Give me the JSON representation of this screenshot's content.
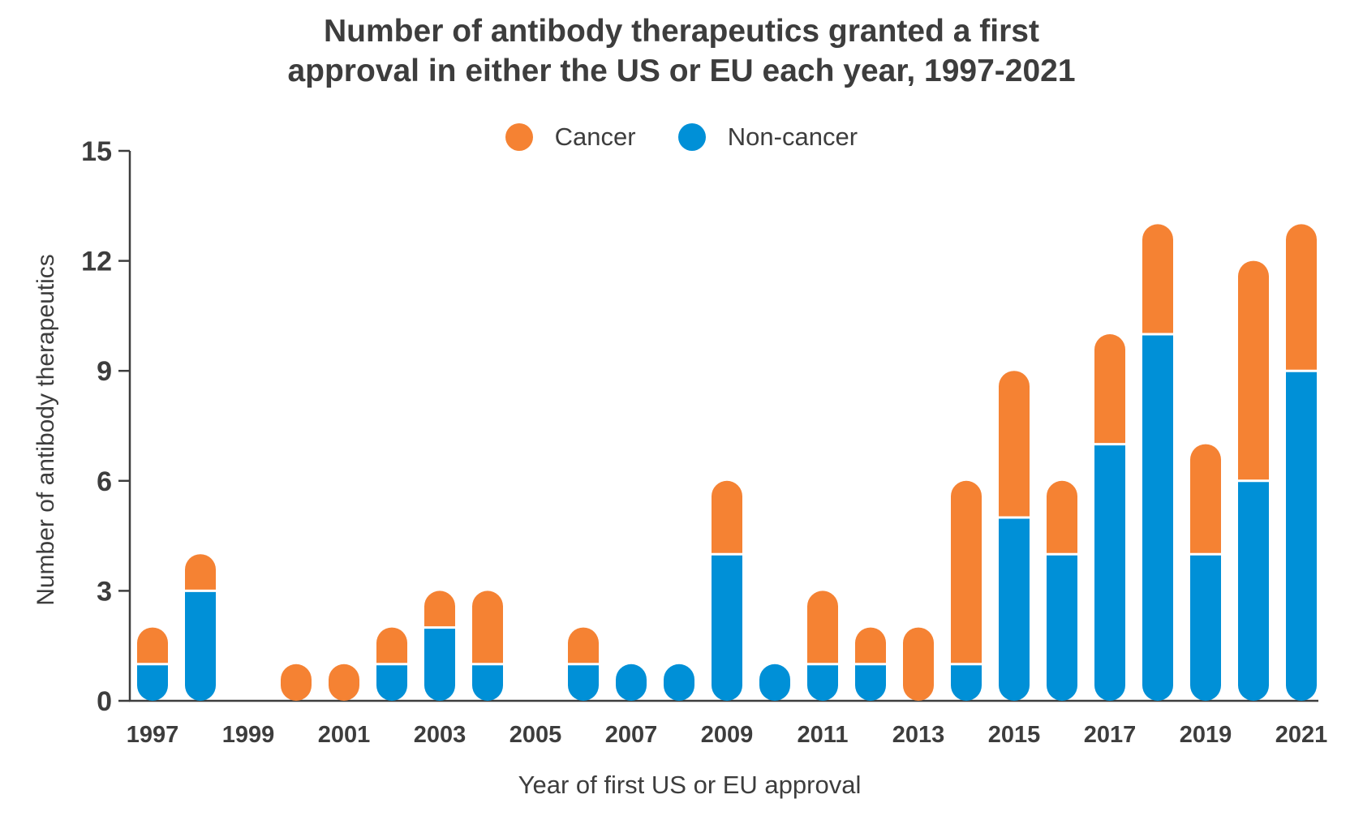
{
  "colors": {
    "cancer": "#F58233",
    "non_cancer": "#0090D7",
    "axis": "#3d3d3d"
  },
  "chart_data": {
    "type": "bar",
    "stacked": true,
    "title": "Number of antibody therapeutics granted a first approval in either the US or EU each year, 1997-2021",
    "title_lines": [
      "Number of antibody therapeutics granted a first",
      "approval in either the US or EU each year, 1997-2021"
    ],
    "xlabel": "Year of first US or EU approval",
    "ylabel": "Number of antibody therapeutics",
    "ylim": [
      0,
      15
    ],
    "yticks": [
      0,
      3,
      6,
      9,
      12,
      15
    ],
    "legend_position": "top-center",
    "categories": [
      1997,
      1998,
      1999,
      2000,
      2001,
      2002,
      2003,
      2004,
      2005,
      2006,
      2007,
      2008,
      2009,
      2010,
      2011,
      2012,
      2013,
      2014,
      2015,
      2016,
      2017,
      2018,
      2019,
      2020,
      2021
    ],
    "xtick_labels": [
      "1997",
      "1999",
      "2001",
      "2003",
      "2005",
      "2007",
      "2009",
      "2011",
      "2013",
      "2015",
      "2017",
      "2019",
      "2021"
    ],
    "series": [
      {
        "name": "Non-cancer",
        "color_key": "non_cancer",
        "values": [
          1,
          3,
          0,
          0,
          0,
          1,
          2,
          1,
          0,
          1,
          1,
          1,
          4,
          1,
          1,
          1,
          0,
          1,
          5,
          4,
          7,
          10,
          4,
          6,
          9
        ]
      },
      {
        "name": "Cancer",
        "color_key": "cancer",
        "values": [
          1,
          1,
          0,
          1,
          1,
          1,
          1,
          2,
          0,
          1,
          0,
          0,
          2,
          0,
          2,
          1,
          2,
          5,
          4,
          2,
          3,
          3,
          3,
          6,
          4
        ]
      }
    ]
  }
}
